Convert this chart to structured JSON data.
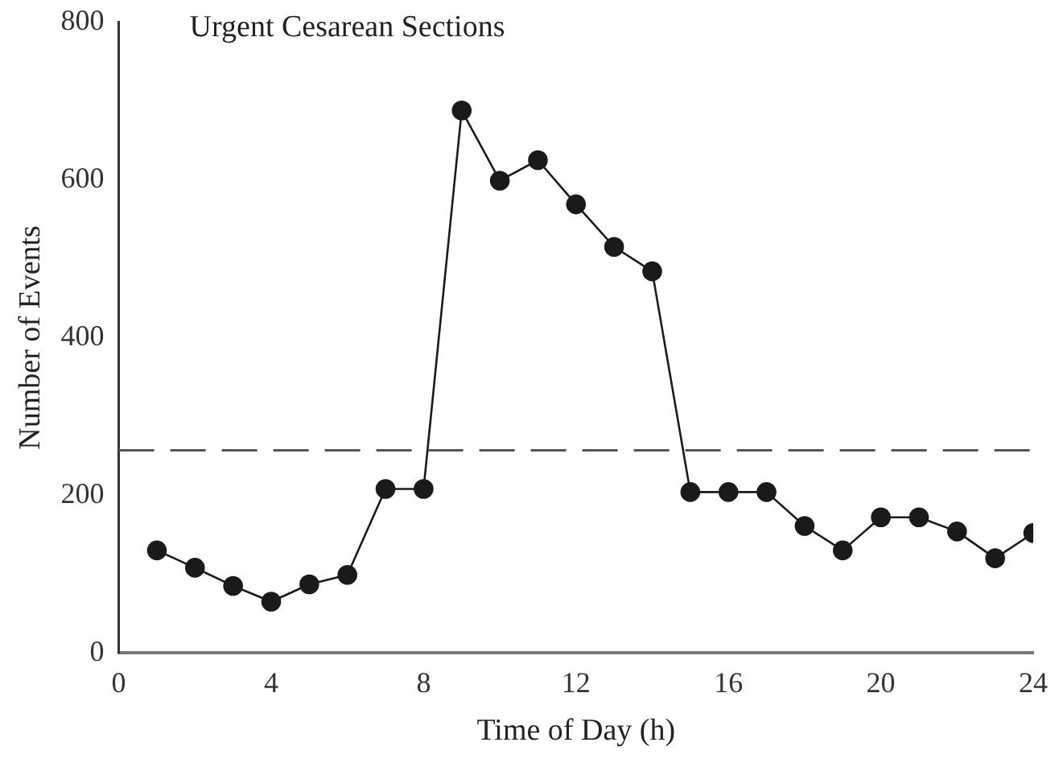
{
  "chart_data": {
    "type": "line",
    "title": "Urgent Cesarean Sections",
    "xlabel": "Time of Day (h)",
    "ylabel": "Number of Events",
    "x": [
      1,
      2,
      3,
      4,
      5,
      6,
      7,
      8,
      9,
      10,
      11,
      12,
      13,
      14,
      15,
      16,
      17,
      18,
      19,
      20,
      21,
      22,
      23,
      24
    ],
    "series": [
      {
        "color": "#1a1a1a",
        "values": [
          130,
          108,
          85,
          65,
          87,
          99,
          208,
          208,
          688,
          599,
          625,
          569,
          515,
          484,
          204,
          204,
          204,
          161,
          130,
          172,
          172,
          154,
          120,
          152
        ]
      }
    ],
    "xlim": [
      0,
      24
    ],
    "xticks": [
      0,
      4,
      8,
      12,
      16,
      20,
      24
    ],
    "ylim": [
      0,
      800
    ],
    "yticks": [
      0,
      200,
      400,
      600,
      800
    ],
    "ref_lines": [
      {
        "axis": "y",
        "value": 257,
        "color": "#555555",
        "line_style": "dashed"
      }
    ],
    "grid": false,
    "legend": false,
    "marker": "circle",
    "line_style": "solid"
  }
}
